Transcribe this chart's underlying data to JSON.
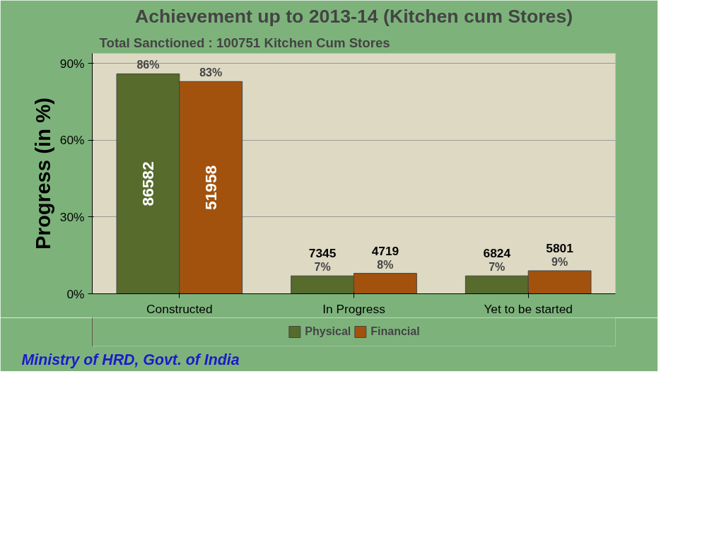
{
  "chart_data": {
    "type": "bar",
    "title": "Achievement up to 2013-14 (Kitchen cum Stores)",
    "subtitle": "Total Sanctioned : 100751 Kitchen Cum Stores",
    "ylabel": "Progress (in %)",
    "categories": [
      "Constructed",
      "In Progress",
      "Yet to be started"
    ],
    "series": [
      {
        "name": "Physical",
        "color": "#566b2c",
        "values": [
          86,
          7,
          7
        ],
        "value_labels": [
          "86%",
          "7%",
          "7%"
        ]
      },
      {
        "name": "Financial",
        "color": "#a3520e",
        "values": [
          83,
          8,
          9
        ],
        "value_labels": [
          "83%",
          "8%",
          "9%"
        ]
      }
    ],
    "annotations": [
      "86582",
      "51958",
      "7345",
      "4719",
      "6824",
      "5801",
      "Ministry of HRD, Govt. of India"
    ],
    "ylim": [
      0,
      94
    ],
    "yticks": [
      {
        "value": 0,
        "label": "0%"
      },
      {
        "value": 30,
        "label": "30%"
      },
      {
        "value": 60,
        "label": "60%"
      },
      {
        "value": 90,
        "label": "90%"
      }
    ],
    "grid": "y",
    "legend": "bottom"
  }
}
